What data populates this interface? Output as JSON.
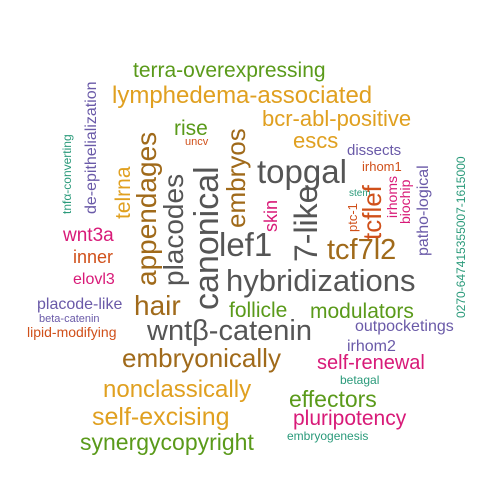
{
  "words": [
    {
      "id": "terra-overexpressing",
      "text": "terra-overexpressing",
      "color": "#5a9a1a",
      "vertical": false
    },
    {
      "id": "lymphedema-associated",
      "text": "lymphedema-associated",
      "color": "#e0a020",
      "vertical": false
    },
    {
      "id": "bcr-abl-positive",
      "text": "bcr-abl-positive",
      "color": "#e0a020",
      "vertical": false
    },
    {
      "id": "rise",
      "text": "rise",
      "color": "#5a9a1a",
      "vertical": false
    },
    {
      "id": "uncv",
      "text": "uncv",
      "color": "#d0501a",
      "vertical": false
    },
    {
      "id": "escs",
      "text": "escs",
      "color": "#e0a020",
      "vertical": false
    },
    {
      "id": "dissects",
      "text": "dissects",
      "color": "#6a5aa8",
      "vertical": false
    },
    {
      "id": "topgal",
      "text": "topgal",
      "color": "#555555",
      "vertical": false
    },
    {
      "id": "irhom1",
      "text": "irhom1",
      "color": "#d0501a",
      "vertical": false
    },
    {
      "id": "stem",
      "text": "stem",
      "color": "#2a9a7a",
      "vertical": false
    },
    {
      "id": "wnt3a",
      "text": "wnt3a",
      "color": "#d81a78",
      "vertical": false
    },
    {
      "id": "lef1",
      "text": "lef1",
      "color": "#555555",
      "vertical": false
    },
    {
      "id": "tcf7l2",
      "text": "tcf7l2",
      "color": "#a06a1a",
      "vertical": false
    },
    {
      "id": "inner",
      "text": "inner",
      "color": "#d0501a",
      "vertical": false
    },
    {
      "id": "elovl3",
      "text": "elovl3",
      "color": "#d81a78",
      "vertical": false
    },
    {
      "id": "hybridizations",
      "text": "hybridizations",
      "color": "#555555",
      "vertical": false
    },
    {
      "id": "hair",
      "text": "hair",
      "color": "#a06a1a",
      "vertical": false
    },
    {
      "id": "placode-like",
      "text": "placode-like",
      "color": "#6a5aa8",
      "vertical": false
    },
    {
      "id": "follicle",
      "text": "follicle",
      "color": "#5a9a1a",
      "vertical": false
    },
    {
      "id": "modulators",
      "text": "modulators",
      "color": "#5a9a1a",
      "vertical": false
    },
    {
      "id": "beta-catenin",
      "text": "beta-catenin",
      "color": "#6a5aa8",
      "vertical": false
    },
    {
      "id": "outpocketings",
      "text": "outpocketings",
      "color": "#6a5aa8",
      "vertical": false
    },
    {
      "id": "lipid-modifying",
      "text": "lipid-modifying",
      "color": "#d0501a",
      "vertical": false
    },
    {
      "id": "wntb-catenin",
      "text": "wntβ-catenin",
      "color": "#555555",
      "vertical": false
    },
    {
      "id": "irhom2",
      "text": "irhom2",
      "color": "#6a5aa8",
      "vertical": false
    },
    {
      "id": "embryonically",
      "text": "embryonically",
      "color": "#a06a1a",
      "vertical": false
    },
    {
      "id": "self-renewal",
      "text": "self-renewal",
      "color": "#d81a78",
      "vertical": false
    },
    {
      "id": "betagal",
      "text": "betagal",
      "color": "#2a9a7a",
      "vertical": false
    },
    {
      "id": "nonclassically",
      "text": "nonclassically",
      "color": "#e0a020",
      "vertical": false
    },
    {
      "id": "effectors",
      "text": "effectors",
      "color": "#5a9a1a",
      "vertical": false
    },
    {
      "id": "self-excising",
      "text": "self-excising",
      "color": "#e0a020",
      "vertical": false
    },
    {
      "id": "pluripotency",
      "text": "pluripotency",
      "color": "#d81a78",
      "vertical": false
    },
    {
      "id": "synergycopyright",
      "text": "synergycopyright",
      "color": "#5a9a1a",
      "vertical": false
    },
    {
      "id": "embryogenesis",
      "text": "embryogenesis",
      "color": "#2a9a7a",
      "vertical": false
    },
    {
      "id": "beta-epithelialization",
      "text": "de-epithelialization",
      "color": "#6a5aa8",
      "vertical": true
    },
    {
      "id": "tnfa-converting",
      "text": "tnfα-converting",
      "color": "#2a9a7a",
      "vertical": true
    },
    {
      "id": "telrna",
      "text": "telrna",
      "color": "#e0a020",
      "vertical": true
    },
    {
      "id": "appendages",
      "text": "appendages",
      "color": "#a06a1a",
      "vertical": true
    },
    {
      "id": "placodes",
      "text": "placodes",
      "color": "#555555",
      "vertical": true
    },
    {
      "id": "canonical",
      "text": "canonical",
      "color": "#555555",
      "vertical": true
    },
    {
      "id": "embryos",
      "text": "embryos",
      "color": "#a06a1a",
      "vertical": true
    },
    {
      "id": "skin",
      "text": "skin",
      "color": "#d81a78",
      "vertical": true
    },
    {
      "id": "7-like",
      "text": "7-like",
      "color": "#555555",
      "vertical": true
    },
    {
      "id": "ptc-1",
      "text": "ptc-1",
      "color": "#d0501a",
      "vertical": true
    },
    {
      "id": "tcflef",
      "text": "tcflef",
      "color": "#d0501a",
      "vertical": true
    },
    {
      "id": "irhoms",
      "text": "irhoms",
      "color": "#d81a78",
      "vertical": true
    },
    {
      "id": "biochip",
      "text": "biochip",
      "color": "#d81a78",
      "vertical": true
    },
    {
      "id": "patho-logical",
      "text": "patho-logical",
      "color": "#6a5aa8",
      "vertical": true
    },
    {
      "id": "id-number",
      "text": "0270-647415355007-1615000",
      "color": "#2a9a7a",
      "vertical": true
    }
  ]
}
